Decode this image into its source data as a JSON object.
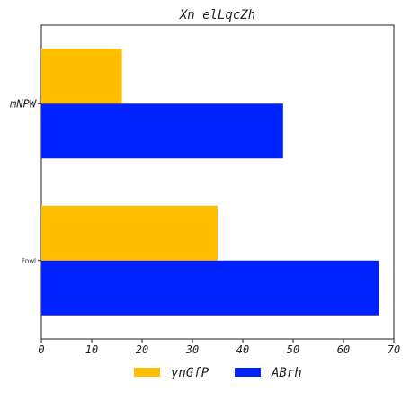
{
  "chart_data": {
    "type": "bar",
    "orientation": "horizontal",
    "title": "Xn elLqcZh",
    "categories": [
      "mNPW",
      "Fnwl"
    ],
    "series": [
      {
        "name": "ynGfP",
        "color": "#FFBF00",
        "values": [
          16,
          35
        ]
      },
      {
        "name": "ABrh",
        "color": "#0022FF",
        "values": [
          48,
          67
        ]
      }
    ],
    "xlim": [
      0,
      70
    ],
    "xticks": [
      "0",
      "10",
      "20",
      "30",
      "40",
      "50",
      "60",
      "70"
    ],
    "xlabel": "",
    "ylabel": "",
    "grid": false,
    "legend": "bottom-center"
  }
}
